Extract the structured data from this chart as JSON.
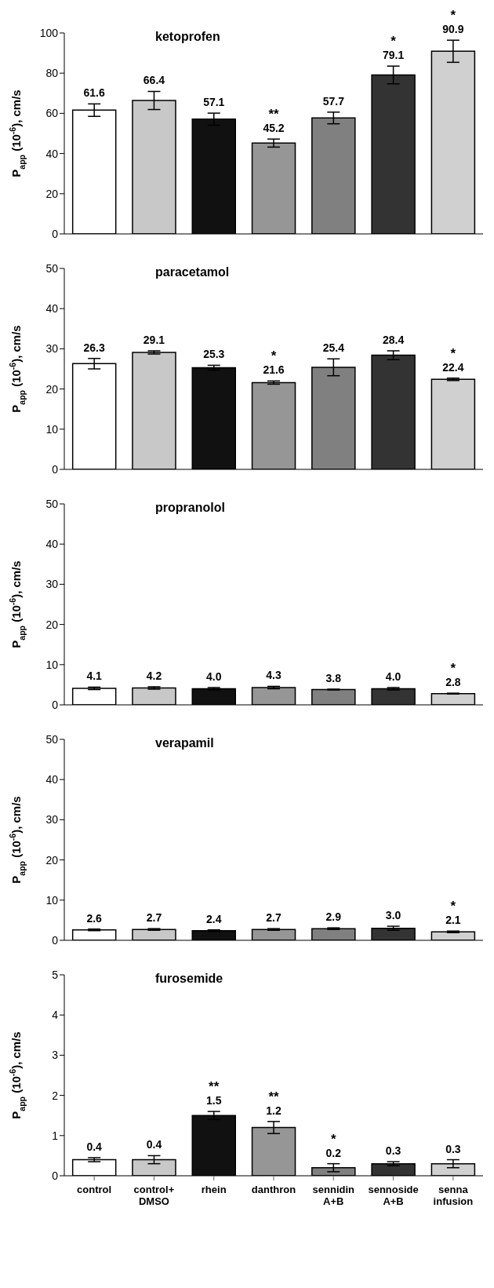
{
  "chart_data": [
    {
      "type": "bar",
      "title": "ketoprofen",
      "ylabel": "P$_{app}$ (10$^{-6}$), cm/s",
      "categories": [
        "control",
        "control+ DMSO",
        "rhein",
        "danthron",
        "sennidin A+B",
        "sennoside A+B",
        "senna infusion"
      ],
      "values": [
        61.6,
        66.4,
        57.1,
        45.2,
        57.7,
        79.1,
        90.9
      ],
      "value_labels": [
        "61.6",
        "66.4",
        "57.1",
        "45.2",
        "57.7",
        "79.1",
        "90.9"
      ],
      "errors": [
        3.1,
        4.5,
        3.0,
        2.0,
        2.9,
        4.4,
        5.5
      ],
      "colors": [
        "#ffffff",
        "#c8c8c8",
        "#111111",
        "#969696",
        "#808080",
        "#333333",
        "#d0d0d0"
      ],
      "ylim": [
        0,
        100
      ],
      "yticks": [
        0,
        20,
        40,
        60,
        80,
        100
      ],
      "tick_labels": "y",
      "annotations": [
        {
          "text": "**",
          "x": "danthron",
          "y": 47.2
        },
        {
          "text": "*",
          "x": "sennoside A+B",
          "y": 83.5
        },
        {
          "text": "*",
          "x": "senna infusion",
          "y": 96.4
        }
      ]
    },
    {
      "type": "bar",
      "title": "paracetamol",
      "ylabel": "P$_{app}$ (10$^{-6}$), cm/s",
      "categories": [
        "control",
        "control+ DMSO",
        "rhein",
        "danthron",
        "sennidin A+B",
        "sennoside A+B",
        "senna infusion"
      ],
      "values": [
        26.3,
        29.1,
        25.3,
        21.6,
        25.4,
        28.4,
        22.4
      ],
      "value_labels": [
        "26.3",
        "29.1",
        "25.3",
        "21.6",
        "25.4",
        "28.4",
        "22.4"
      ],
      "errors": [
        1.3,
        0.4,
        0.6,
        0.4,
        2.1,
        1.1,
        0.3
      ],
      "colors": [
        "#ffffff",
        "#c8c8c8",
        "#111111",
        "#969696",
        "#808080",
        "#333333",
        "#d0d0d0"
      ],
      "ylim": [
        0,
        50
      ],
      "yticks": [
        0,
        10,
        20,
        30,
        40,
        50
      ],
      "tick_labels": "y",
      "annotations": [
        {
          "text": "*",
          "x": "danthron",
          "y": 22.0
        },
        {
          "text": "*",
          "x": "senna infusion",
          "y": 22.7
        }
      ]
    },
    {
      "type": "bar",
      "title": "propranolol",
      "ylabel": "P$_{app}$ (10$^{-6}$), cm/s",
      "categories": [
        "control",
        "control+ DMSO",
        "rhein",
        "danthron",
        "sennidin A+B",
        "sennoside A+B",
        "senna infusion"
      ],
      "values": [
        4.1,
        4.2,
        4.0,
        4.3,
        3.8,
        4.0,
        2.8
      ],
      "value_labels": [
        "4.1",
        "4.2",
        "4.0",
        "4.3",
        "3.8",
        "4.0",
        "2.8"
      ],
      "errors": [
        0.3,
        0.3,
        0.3,
        0.3,
        0.1,
        0.3,
        0.1
      ],
      "colors": [
        "#ffffff",
        "#c8c8c8",
        "#111111",
        "#969696",
        "#808080",
        "#333333",
        "#d0d0d0"
      ],
      "ylim": [
        0,
        50
      ],
      "yticks": [
        0,
        10,
        20,
        30,
        40,
        50
      ],
      "tick_labels": "y",
      "annotations": [
        {
          "text": "*",
          "x": "senna infusion",
          "y": 2.9
        }
      ]
    },
    {
      "type": "bar",
      "title": "verapamil",
      "ylabel": "P$_{app}$ (10$^{-6}$), cm/s",
      "categories": [
        "control",
        "control+ DMSO",
        "rhein",
        "danthron",
        "sennidin A+B",
        "sennoside A+B",
        "senna infusion"
      ],
      "values": [
        2.6,
        2.7,
        2.4,
        2.7,
        2.9,
        3.0,
        2.1
      ],
      "value_labels": [
        "2.6",
        "2.7",
        "2.4",
        "2.7",
        "2.9",
        "3.0",
        "2.1"
      ],
      "errors": [
        0.2,
        0.2,
        0.2,
        0.2,
        0.2,
        0.5,
        0.2
      ],
      "colors": [
        "#ffffff",
        "#c8c8c8",
        "#111111",
        "#969696",
        "#808080",
        "#333333",
        "#d0d0d0"
      ],
      "ylim": [
        0,
        50
      ],
      "yticks": [
        0,
        10,
        20,
        30,
        40,
        50
      ],
      "tick_labels": "y",
      "annotations": [
        {
          "text": "*",
          "x": "senna infusion",
          "y": 2.3
        }
      ]
    },
    {
      "type": "bar",
      "title": "furosemide",
      "ylabel": "P$_{app}$ (10$^{-6}$), cm/s",
      "categories": [
        "control",
        "control+ DMSO",
        "rhein",
        "danthron",
        "sennidin A+B",
        "sennoside A+B",
        "senna infusion"
      ],
      "values": [
        0.4,
        0.4,
        1.5,
        1.2,
        0.2,
        0.3,
        0.3
      ],
      "value_labels": [
        "0.4",
        "0.4",
        "1.5",
        "1.2",
        "0.2",
        "0.3",
        "0.3"
      ],
      "errors": [
        0.05,
        0.1,
        0.1,
        0.15,
        0.1,
        0.05,
        0.1
      ],
      "colors": [
        "#ffffff",
        "#c8c8c8",
        "#111111",
        "#969696",
        "#808080",
        "#333333",
        "#d0d0d0"
      ],
      "ylim": [
        0,
        5
      ],
      "yticks": [
        0,
        1,
        2,
        3,
        4,
        5
      ],
      "annotations": [
        {
          "text": "**",
          "x": "rhein",
          "y": 1.6
        },
        {
          "text": "**",
          "x": "danthron",
          "y": 1.35
        },
        {
          "text": "*",
          "x": "sennidin A+B",
          "y": 0.3
        }
      ]
    }
  ]
}
